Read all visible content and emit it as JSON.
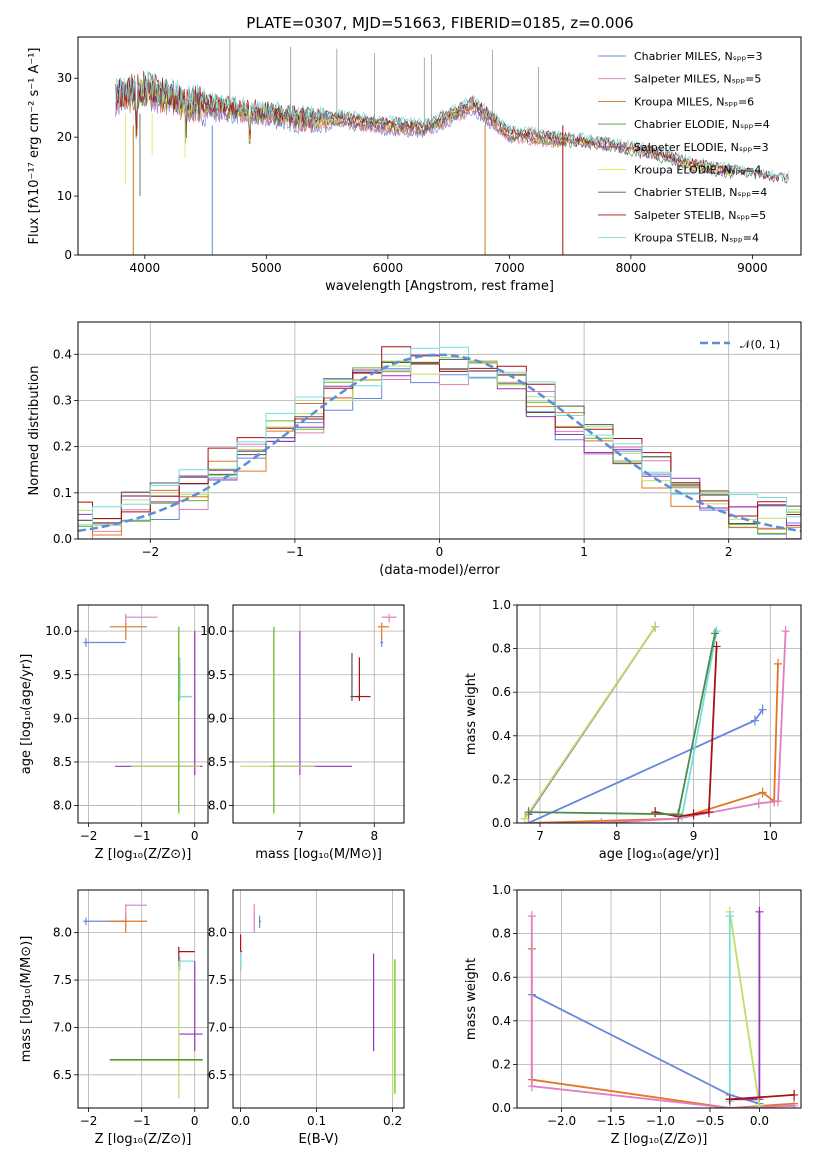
{
  "title": "PLATE=0307, MJD=51663, FIBERID=0185, z=0.006",
  "colors": {
    "cm": "#6688dd",
    "sm": "#e07fc0",
    "km": "#cc7722",
    "ce": "#4c8c4c",
    "se": "#9933bb",
    "ke": "#e6e64c",
    "cs": "#555555",
    "ss": "#aa1111",
    "ks": "#77dddd",
    "or": "#e07722",
    "yg": "#bbe066",
    "lg": "#66bb22"
  },
  "panels": {
    "spectrum": {
      "xlabel": "wavelength [Angstrom, rest frame]",
      "ylabel": "Flux [fλ10⁻¹⁷ erg cm⁻² s⁻¹ A⁻¹]",
      "xlim": [
        3450,
        9400
      ],
      "ylim": [
        0,
        37
      ],
      "xticks": [
        "4000",
        "5000",
        "6000",
        "7000",
        "8000",
        "9000"
      ],
      "yticks": [
        "0",
        "10",
        "20",
        "30"
      ],
      "legend": [
        "Chabrier MILES, Nₛₚₚ=3",
        "Salpeter MILES, Nₛₚₚ=5",
        "Kroupa MILES, Nₛₚₚ=6",
        "Chabrier ELODIE, Nₛₚₚ=4",
        "Salpeter ELODIE, Nₛₚₚ=3",
        "Kroupa ELODIE, Nₛₚₚ=4",
        "Chabrier STELIB, Nₛₚₚ=4",
        "Salpeter STELIB, Nₛₚₚ=5",
        "Kroupa STELIB, Nₛₚₚ=4"
      ]
    },
    "hist": {
      "xlabel": "(data-model)/error",
      "ylabel": "Normed distribution",
      "xlim": [
        -2.5,
        2.5
      ],
      "ylim": [
        0,
        0.47
      ],
      "xticks": [
        "−2",
        "−1",
        "0",
        "1",
        "2"
      ],
      "yticks": [
        "0.0",
        "0.1",
        "0.2",
        "0.3",
        "0.4"
      ],
      "legend": "𝒩(0, 1)"
    },
    "age_Z": {
      "xlabel": "Z [log₁₀(Z/Z⊙)]",
      "ylabel": "age  [log₁₀(age/yr)]",
      "xlim": [
        -2.2,
        0.25
      ],
      "ylim": [
        7.8,
        10.3
      ],
      "xticks": [
        "−2",
        "−1",
        "0"
      ],
      "yticks": [
        "8.0",
        "8.5",
        "9.0",
        "9.5",
        "10.0"
      ]
    },
    "age_mass": {
      "xlabel": "mass [log₁₀(M/M⊙)]",
      "xlim": [
        6.1,
        8.4
      ],
      "ylim": [
        7.8,
        10.3
      ],
      "xticks": [
        "7",
        "8"
      ],
      "yticks": [
        "8.0",
        "8.5",
        "9.0",
        "9.5",
        "10.0"
      ]
    },
    "mw_age": {
      "xlabel": "age  [log₁₀(age/yr)]",
      "ylabel": "mass weight",
      "xlim": [
        6.7,
        10.4
      ],
      "ylim": [
        0,
        1.0
      ],
      "xticks": [
        "7",
        "8",
        "9",
        "10"
      ],
      "yticks": [
        "0.0",
        "0.2",
        "0.4",
        "0.6",
        "0.8",
        "1.0"
      ]
    },
    "mass_Z": {
      "xlabel": "Z [log₁₀(Z/Z⊙)]",
      "ylabel": "mass [log₁₀(M/M⊙)]",
      "xlim": [
        -2.2,
        0.25
      ],
      "ylim": [
        6.15,
        8.45
      ],
      "xticks": [
        "−2",
        "−1",
        "0"
      ],
      "yticks": [
        "6.5",
        "7.0",
        "7.5",
        "8.0"
      ]
    },
    "mass_ebv": {
      "xlabel": "E(B-V)",
      "xlim": [
        -0.01,
        0.215
      ],
      "ylim": [
        6.15,
        8.45
      ],
      "xticks": [
        "0.0",
        "0.1",
        "0.2"
      ],
      "yticks": [
        "6.5",
        "7.0",
        "7.5",
        "8.0"
      ]
    },
    "mw_Z": {
      "xlabel": "Z [log₁₀(Z/Z⊙)]",
      "ylabel": "mass weight",
      "xlim": [
        -2.45,
        0.42
      ],
      "ylim": [
        0,
        1.0
      ],
      "xticks": [
        "−2.0",
        "−1.5",
        "−1.0",
        "−0.5",
        "0.0"
      ],
      "yticks": [
        "0.0",
        "0.2",
        "0.4",
        "0.6",
        "0.8",
        "1.0"
      ]
    }
  },
  "chart_data": [
    {
      "type": "line",
      "title": "PLATE=0307, MJD=51663, FIBERID=0185, z=0.006",
      "xlabel": "wavelength [Angstrom, rest frame]",
      "ylabel": "Flux [fλ10⁻¹⁷ erg cm⁻² s⁻¹ A⁻¹]",
      "x": [
        3800,
        4000,
        4300,
        4600,
        5000,
        5300,
        5600,
        6000,
        6300,
        6560,
        6700,
        7000,
        7400,
        7800,
        8200,
        8500,
        8800,
        9200
      ],
      "y": [
        27,
        28,
        26,
        25,
        24,
        23,
        23,
        22,
        21.5,
        24,
        25.5,
        20.5,
        19.5,
        18.5,
        17,
        15,
        14,
        12.5
      ],
      "xlim": [
        3450,
        9400
      ],
      "ylim": [
        0,
        37
      ]
    },
    {
      "type": "bar",
      "xlabel": "(data-model)/error",
      "ylabel": "Normed distribution",
      "x": [
        -2.5,
        -2.3,
        -2.1,
        -1.9,
        -1.7,
        -1.5,
        -1.3,
        -1.1,
        -0.9,
        -0.7,
        -0.5,
        -0.3,
        -0.1,
        0.1,
        0.3,
        0.5,
        0.7,
        0.9,
        1.1,
        1.3,
        1.5,
        1.7,
        1.9,
        2.1,
        2.3,
        2.5
      ],
      "values": [
        0.04,
        0.05,
        0.07,
        0.09,
        0.11,
        0.15,
        0.19,
        0.23,
        0.27,
        0.31,
        0.34,
        0.37,
        0.38,
        0.38,
        0.36,
        0.33,
        0.3,
        0.26,
        0.22,
        0.19,
        0.15,
        0.11,
        0.08,
        0.06,
        0.04,
        0.03
      ],
      "xlim": [
        -2.5,
        2.5
      ],
      "ylim": [
        0,
        0.47
      ]
    },
    {
      "type": "line",
      "xlabel": "age  [log₁₀(age/yr)]",
      "ylabel": "mass weight",
      "xlim": [
        6.7,
        10.4
      ],
      "ylim": [
        0,
        1.0
      ],
      "series": [
        {
          "color": "#6688dd",
          "x": [
            9.9,
            9.8,
            6.85
          ],
          "y": [
            0.52,
            0.47,
            0.0
          ]
        },
        {
          "color": "#e07722",
          "x": [
            10.1,
            10.05,
            9.9,
            8.8,
            6.85
          ],
          "y": [
            0.73,
            0.1,
            0.14,
            0.02,
            0.0
          ]
        },
        {
          "color": "#e07fc0",
          "x": [
            10.2,
            10.1,
            9.85,
            8.8,
            7.8,
            6.85
          ],
          "y": [
            0.88,
            0.1,
            0.09,
            0.02,
            0.0,
            0.0
          ]
        },
        {
          "color": "#9933bb",
          "x": [
            8.5,
            6.85
          ],
          "y": [
            0.9,
            0.04
          ]
        },
        {
          "color": "#bbe066",
          "x": [
            8.5,
            6.8
          ],
          "y": [
            0.9,
            0.02
          ]
        },
        {
          "color": "#77dddd",
          "x": [
            9.3,
            8.85
          ],
          "y": [
            0.88,
            0.03
          ]
        },
        {
          "color": "#aa1111",
          "x": [
            9.3,
            9.2,
            9.0,
            8.8,
            8.5
          ],
          "y": [
            0.81,
            0.05,
            0.04,
            0.03,
            0.05
          ]
        },
        {
          "color": "#4c8c4c",
          "x": [
            9.28,
            8.8,
            6.85
          ],
          "y": [
            0.87,
            0.04,
            0.05
          ]
        }
      ]
    },
    {
      "type": "line",
      "xlabel": "Z [log₁₀(Z/Z⊙)]",
      "ylabel": "mass weight",
      "xlim": [
        -2.45,
        0.42
      ],
      "ylim": [
        0,
        1.0
      ],
      "series": [
        {
          "color": "#6688dd",
          "x": [
            -2.3,
            -0.3,
            0.0
          ],
          "y": [
            0.52,
            0.06,
            0.02
          ]
        },
        {
          "color": "#e07722",
          "x": [
            -2.3,
            -2.3,
            -0.3,
            0.35
          ],
          "y": [
            0.73,
            0.13,
            0.0,
            0.02
          ]
        },
        {
          "color": "#e07fc0",
          "x": [
            -2.3,
            -2.3,
            -0.3,
            0.35
          ],
          "y": [
            0.88,
            0.1,
            0.0,
            0.01
          ]
        },
        {
          "color": "#9933bb",
          "x": [
            0.0,
            0.0,
            -0.3
          ],
          "y": [
            0.9,
            0.04,
            0.04
          ]
        },
        {
          "color": "#bbe066",
          "x": [
            -0.3,
            0.0
          ],
          "y": [
            0.9,
            0.01
          ]
        },
        {
          "color": "#77dddd",
          "x": [
            -0.3,
            -0.3
          ],
          "y": [
            0.88,
            0.03
          ]
        },
        {
          "color": "#aa1111",
          "x": [
            -0.3,
            0.35
          ],
          "y": [
            0.04,
            0.06
          ]
        }
      ]
    }
  ]
}
